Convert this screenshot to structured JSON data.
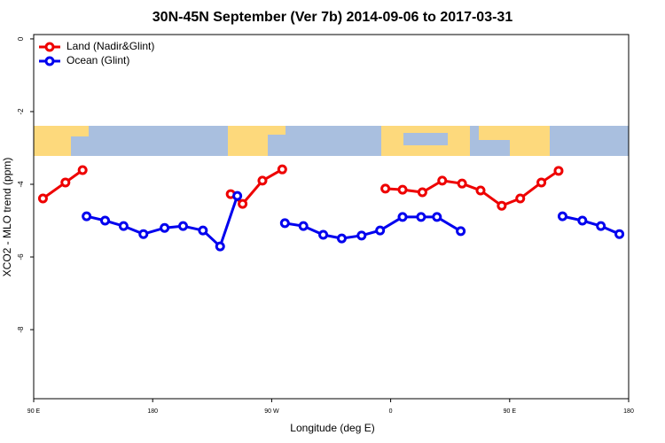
{
  "chart_data": {
    "type": "line",
    "title": "30N-45N September (Ver 7b)   2014-09-06 to 2017-03-31",
    "x_label": "Longitude (deg E)",
    "y_label": "XCO2 - MLO trend (ppm)",
    "xlim": [
      90,
      540
    ],
    "ylim": [
      -9.9,
      0.12
    ],
    "xticks": [
      {
        "value": 90,
        "label": "90 E"
      },
      180,
      {
        "value": 270,
        "label": "90 W"
      },
      {
        "value": 360,
        "label": "0"
      },
      {
        "value": 450,
        "label": "90 E"
      },
      {
        "value": 540,
        "label": "180"
      }
    ],
    "yticks": [
      0,
      -2,
      -4,
      -6,
      -8
    ],
    "legend": "top-left",
    "series": [
      {
        "name": "Land (Nadir&Glint)",
        "color": "#ee0000",
        "x": [
          97,
          114,
          127,
          null,
          239,
          248,
          263,
          278,
          null,
          356,
          369,
          384,
          399,
          414,
          428,
          444,
          458,
          474,
          487
        ],
        "values": [
          -4.39,
          -3.95,
          -3.61,
          null,
          -4.27,
          -4.54,
          -3.9,
          -3.59,
          null,
          -4.12,
          -4.15,
          -4.22,
          -3.9,
          -3.98,
          -4.17,
          -4.59,
          -4.39,
          -3.95,
          -3.63
        ]
      },
      {
        "name": "Ocean (Glint)",
        "color": "#0000ee",
        "x": [
          130,
          144,
          158,
          173,
          189,
          203,
          218,
          231,
          244,
          null,
          280,
          294,
          309,
          323,
          338,
          352,
          369,
          383,
          395,
          413,
          null,
          490,
          505,
          519,
          533
        ],
        "values": [
          -4.88,
          -5.0,
          -5.15,
          -5.37,
          -5.2,
          -5.15,
          -5.27,
          -5.71,
          -4.32,
          null,
          -5.07,
          -5.15,
          -5.39,
          -5.49,
          -5.41,
          -5.27,
          -4.9,
          -4.9,
          -4.9,
          -5.29,
          null,
          -4.88,
          -5.0,
          -5.15,
          -5.37
        ]
      }
    ]
  }
}
